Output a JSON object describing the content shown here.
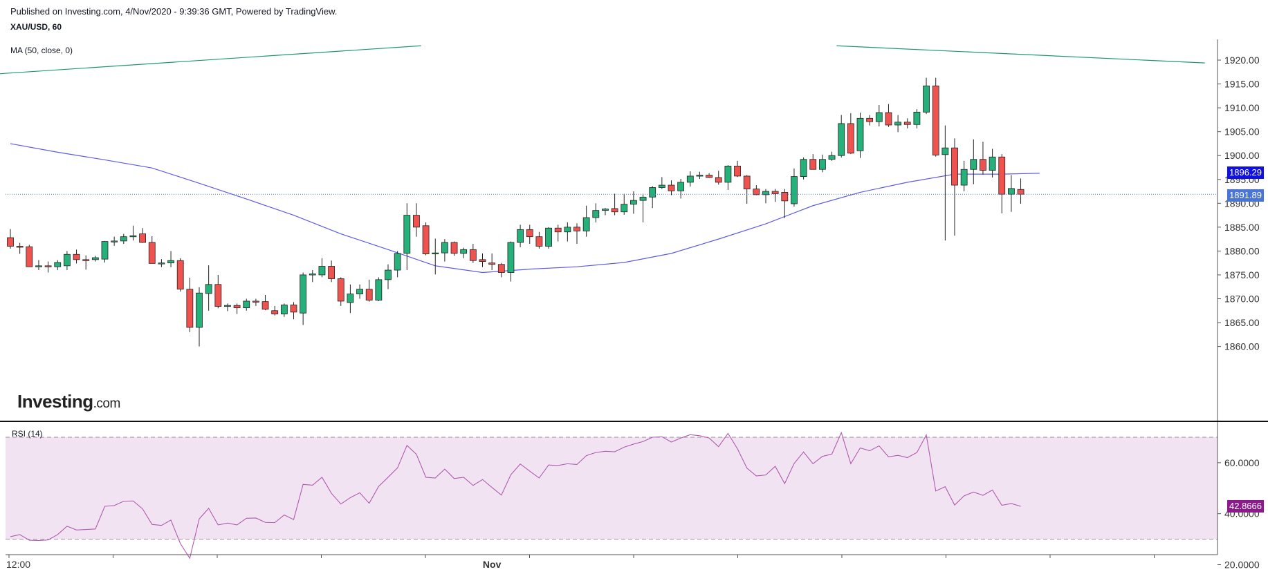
{
  "header": {
    "published": "Published on Investing.com, 4/Nov/2020 - 9:39:36 GMT, Powered by TradingView.",
    "symbol": "XAU/USD, 60",
    "ma_label": "MA (50, close, 0)"
  },
  "logo": {
    "main": "Investing",
    "suffix": ".com"
  },
  "rsi_panel": {
    "label": "RSI (14)"
  },
  "colors": {
    "up": "#26b07a",
    "down": "#ef5350",
    "ma": "#5b5be8",
    "rsi_line": "#b05ab0",
    "rsi_band": "#f1e3f1",
    "trendline": "#1e9a6a",
    "last_price": "#4a75d8",
    "ma_tag": "#1010e0",
    "rsi_tag": "#8c1a8c"
  },
  "price_axis_labels": [
    "1920.00",
    "1915.00",
    "1910.00",
    "1905.00",
    "1900.00",
    "1895.00",
    "1890.00",
    "1885.00",
    "1880.00",
    "1875.00",
    "1870.00",
    "1865.00",
    "1860.00"
  ],
  "rsi_axis_labels": [
    "60.0000",
    "40.0000",
    "20.0000"
  ],
  "time_axis_labels": [
    {
      "text": "12:00",
      "bar": 0
    },
    {
      "text": "Nov",
      "bar": 51
    }
  ],
  "current": {
    "last_price": "1891.89",
    "ma_value": "1896.29",
    "rsi_value": "42.8666"
  },
  "chart_data": [
    {
      "type": "candlestick",
      "title": "XAU/USD, 60",
      "interval": "60",
      "ylim": [
        1857.5,
        1922.5
      ],
      "ohlc": [
        [
          1882.8,
          1884.6,
          1880.5,
          1881.0
        ],
        [
          1881.0,
          1881.7,
          1879.4,
          1880.9
        ],
        [
          1880.9,
          1881.3,
          1876.7,
          1876.7
        ],
        [
          1876.7,
          1878.1,
          1876.0,
          1876.9
        ],
        [
          1876.9,
          1877.8,
          1875.5,
          1876.8
        ],
        [
          1876.7,
          1878.1,
          1876.0,
          1877.6
        ],
        [
          1876.9,
          1880.0,
          1876.0,
          1879.3
        ],
        [
          1879.3,
          1880.3,
          1877.4,
          1878.2
        ],
        [
          1878.2,
          1879.1,
          1876.1,
          1878.1
        ],
        [
          1878.2,
          1879.0,
          1877.8,
          1878.6
        ],
        [
          1878.3,
          1882.1,
          1877.6,
          1882.0
        ],
        [
          1881.9,
          1883.0,
          1881.1,
          1882.1
        ],
        [
          1882.1,
          1883.6,
          1881.5,
          1883.0
        ],
        [
          1883.0,
          1885.3,
          1882.2,
          1883.2
        ],
        [
          1883.6,
          1884.8,
          1881.7,
          1881.8
        ],
        [
          1881.8,
          1883.1,
          1877.4,
          1877.4
        ],
        [
          1877.4,
          1878.3,
          1876.6,
          1877.5
        ],
        [
          1877.5,
          1880.0,
          1876.6,
          1878.0
        ],
        [
          1878.0,
          1878.5,
          1871.5,
          1872.0
        ],
        [
          1872.0,
          1874.4,
          1863.0,
          1864.0
        ],
        [
          1864.0,
          1872.4,
          1860.0,
          1871.2
        ],
        [
          1871.1,
          1877.0,
          1867.5,
          1873.0
        ],
        [
          1873.0,
          1875.0,
          1868.0,
          1868.4
        ],
        [
          1868.4,
          1869.0,
          1867.4,
          1868.6
        ],
        [
          1868.6,
          1869.0,
          1866.8,
          1868.1
        ],
        [
          1868.1,
          1870.0,
          1867.5,
          1869.5
        ],
        [
          1869.5,
          1870.0,
          1868.5,
          1869.4
        ],
        [
          1869.4,
          1870.8,
          1867.6,
          1867.8
        ],
        [
          1867.5,
          1868.5,
          1866.5,
          1866.8
        ],
        [
          1866.8,
          1869.0,
          1866.2,
          1868.7
        ],
        [
          1868.7,
          1869.3,
          1865.7,
          1867.2
        ],
        [
          1867.0,
          1875.5,
          1864.5,
          1875.0
        ],
        [
          1875.0,
          1876.0,
          1873.5,
          1875.2
        ],
        [
          1875.0,
          1878.5,
          1874.5,
          1876.8
        ],
        [
          1876.8,
          1878.0,
          1873.5,
          1874.2
        ],
        [
          1874.2,
          1874.5,
          1868.5,
          1869.5
        ],
        [
          1869.2,
          1873.0,
          1867.0,
          1871.0
        ],
        [
          1871.0,
          1873.0,
          1870.0,
          1872.0
        ],
        [
          1872.0,
          1874.0,
          1869.4,
          1869.7
        ],
        [
          1869.7,
          1874.5,
          1869.5,
          1874.0
        ],
        [
          1874.0,
          1877.2,
          1872.0,
          1876.0
        ],
        [
          1876.0,
          1880.0,
          1874.5,
          1879.5
        ],
        [
          1879.5,
          1890.0,
          1876.0,
          1887.5
        ],
        [
          1887.5,
          1890.0,
          1883.0,
          1885.0
        ],
        [
          1885.3,
          1886.0,
          1879.1,
          1879.4
        ],
        [
          1879.4,
          1882.6,
          1875.1,
          1879.6
        ],
        [
          1879.6,
          1882.5,
          1877.8,
          1881.8
        ],
        [
          1881.8,
          1882.0,
          1879.0,
          1879.5
        ],
        [
          1879.5,
          1880.7,
          1878.5,
          1880.3
        ],
        [
          1880.3,
          1881.5,
          1877.5,
          1878.0
        ],
        [
          1878.2,
          1879.5,
          1876.6,
          1877.8
        ],
        [
          1877.5,
          1879.5,
          1876.0,
          1877.2
        ],
        [
          1877.2,
          1877.5,
          1874.5,
          1875.5
        ],
        [
          1875.5,
          1882.0,
          1873.6,
          1881.8
        ],
        [
          1881.8,
          1885.5,
          1880.8,
          1884.5
        ],
        [
          1884.5,
          1885.5,
          1881.5,
          1883.0
        ],
        [
          1883.0,
          1884.0,
          1880.5,
          1881.0
        ],
        [
          1881.0,
          1885.0,
          1880.5,
          1884.8
        ],
        [
          1884.8,
          1885.5,
          1882.0,
          1884.0
        ],
        [
          1884.0,
          1886.0,
          1882.0,
          1885.0
        ],
        [
          1885.0,
          1885.8,
          1881.5,
          1884.2
        ],
        [
          1884.2,
          1889.5,
          1883.0,
          1887.0
        ],
        [
          1887.0,
          1890.0,
          1886.0,
          1888.5
        ],
        [
          1888.5,
          1889.0,
          1887.5,
          1888.8
        ],
        [
          1888.9,
          1892.0,
          1887.5,
          1888.2
        ],
        [
          1888.2,
          1892.0,
          1887.6,
          1889.8
        ],
        [
          1889.8,
          1892.5,
          1887.8,
          1890.6
        ],
        [
          1890.6,
          1892.0,
          1886.0,
          1891.3
        ],
        [
          1891.3,
          1893.6,
          1889.0,
          1893.3
        ],
        [
          1893.3,
          1895.5,
          1893.0,
          1893.8
        ],
        [
          1893.8,
          1894.8,
          1891.7,
          1892.6
        ],
        [
          1892.6,
          1895.1,
          1891.0,
          1894.4
        ],
        [
          1894.4,
          1896.7,
          1893.5,
          1895.7
        ],
        [
          1895.7,
          1896.6,
          1895.1,
          1895.9
        ],
        [
          1895.9,
          1896.3,
          1895.3,
          1895.4
        ],
        [
          1895.4,
          1896.8,
          1893.9,
          1894.4
        ],
        [
          1894.4,
          1898.0,
          1892.8,
          1897.8
        ],
        [
          1897.8,
          1898.9,
          1895.5,
          1895.7
        ],
        [
          1895.7,
          1895.9,
          1889.9,
          1893.0
        ],
        [
          1893.0,
          1893.8,
          1891.7,
          1891.8
        ],
        [
          1891.8,
          1893.0,
          1890.0,
          1892.5
        ],
        [
          1892.5,
          1893.0,
          1890.3,
          1892.0
        ],
        [
          1892.3,
          1893.0,
          1886.9,
          1890.5
        ],
        [
          1889.9,
          1897.3,
          1889.3,
          1895.6
        ],
        [
          1895.6,
          1899.6,
          1895.0,
          1899.2
        ],
        [
          1899.2,
          1900.3,
          1897.1,
          1897.1
        ],
        [
          1897.1,
          1900.2,
          1896.5,
          1899.2
        ],
        [
          1899.2,
          1900.8,
          1898.9,
          1900.0
        ],
        [
          1900.0,
          1908.5,
          1899.6,
          1906.7
        ],
        [
          1906.7,
          1908.9,
          1900.3,
          1900.5
        ],
        [
          1901.0,
          1909.0,
          1899.5,
          1907.8
        ],
        [
          1907.8,
          1908.5,
          1906.3,
          1907.1
        ],
        [
          1907.1,
          1910.6,
          1906.1,
          1909.0
        ],
        [
          1909.0,
          1910.8,
          1906.0,
          1906.4
        ],
        [
          1906.4,
          1908.5,
          1904.9,
          1907.0
        ],
        [
          1907.0,
          1907.8,
          1905.7,
          1906.5
        ],
        [
          1906.5,
          1909.7,
          1905.7,
          1909.1
        ],
        [
          1909.1,
          1916.3,
          1908.7,
          1914.6
        ],
        [
          1914.6,
          1916.3,
          1899.8,
          1900.1
        ],
        [
          1900.2,
          1906.3,
          1882.2,
          1901.6
        ],
        [
          1901.6,
          1903.6,
          1883.2,
          1893.8
        ],
        [
          1893.8,
          1898.9,
          1892.5,
          1897.1
        ],
        [
          1897.1,
          1903.4,
          1894.0,
          1899.2
        ],
        [
          1899.2,
          1902.9,
          1896.0,
          1896.9
        ],
        [
          1896.9,
          1901.4,
          1895.4,
          1899.7
        ],
        [
          1899.7,
          1900.3,
          1887.9,
          1891.9
        ],
        [
          1891.9,
          1895.9,
          1888.2,
          1893.1
        ],
        [
          1892.9,
          1895.2,
          1889.9,
          1891.9
        ]
      ],
      "ma": {
        "name": "MA (50, close, 0)",
        "points": [
          [
            0,
            1902.5
          ],
          [
            5,
            1900.7
          ],
          [
            10,
            1899.1
          ],
          [
            15,
            1897.4
          ],
          [
            20,
            1894.2
          ],
          [
            25,
            1890.9
          ],
          [
            30,
            1887.5
          ],
          [
            35,
            1883.6
          ],
          [
            40,
            1880.3
          ],
          [
            45,
            1876.9
          ],
          [
            50,
            1875.5
          ],
          [
            55,
            1876.2
          ],
          [
            60,
            1876.7
          ],
          [
            65,
            1877.6
          ],
          [
            70,
            1879.5
          ],
          [
            75,
            1882.5
          ],
          [
            80,
            1885.7
          ],
          [
            85,
            1889.5
          ],
          [
            90,
            1892.3
          ],
          [
            95,
            1894.4
          ],
          [
            100,
            1896.1
          ],
          [
            105,
            1896.1
          ],
          [
            109,
            1896.3
          ]
        ]
      },
      "trendlines": [
        {
          "from": [
            -1.5,
            1917.1
          ],
          "to": [
            43.5,
            1923.0
          ]
        },
        {
          "from": [
            87.5,
            1923.0
          ],
          "to": [
            126.5,
            1919.4
          ]
        }
      ],
      "last_price": 1891.89
    },
    {
      "type": "line",
      "title": "RSI (14)",
      "ylim": [
        18,
        76
      ],
      "bands": [
        30,
        70
      ],
      "values": [
        31.0,
        31.8,
        29.6,
        29.5,
        29.7,
        31.8,
        35.1,
        33.6,
        33.8,
        34.0,
        42.9,
        43.2,
        44.9,
        45.0,
        41.9,
        35.8,
        35.4,
        37.5,
        28.3,
        22.5,
        38.0,
        42.1,
        35.6,
        36.3,
        35.6,
        38.2,
        38.3,
        36.6,
        36.5,
        39.5,
        37.7,
        51.5,
        51.2,
        54.3,
        48.0,
        43.8,
        46.3,
        48.2,
        44.1,
        50.7,
        54.3,
        58.0,
        66.8,
        63.3,
        54.3,
        54.0,
        57.5,
        53.8,
        54.3,
        51.1,
        53.4,
        50.3,
        47.3,
        55.3,
        59.5,
        56.7,
        54.0,
        59.1,
        58.9,
        59.6,
        59.3,
        62.8,
        64.0,
        64.5,
        64.3,
        66.1,
        67.3,
        68.3,
        70.0,
        70.2,
        68.1,
        69.7,
        71.0,
        70.6,
        69.7,
        66.3,
        71.5,
        65.5,
        57.9,
        54.8,
        55.2,
        58.6,
        51.8,
        59.7,
        64.2,
        59.6,
        62.5,
        63.4,
        71.8,
        59.6,
        65.8,
        64.7,
        66.6,
        62.3,
        62.9,
        62.0,
        64.0,
        70.9,
        48.9,
        50.6,
        43.4,
        47.0,
        48.5,
        47.2,
        49.3,
        43.3,
        44.0,
        42.9
      ]
    }
  ]
}
